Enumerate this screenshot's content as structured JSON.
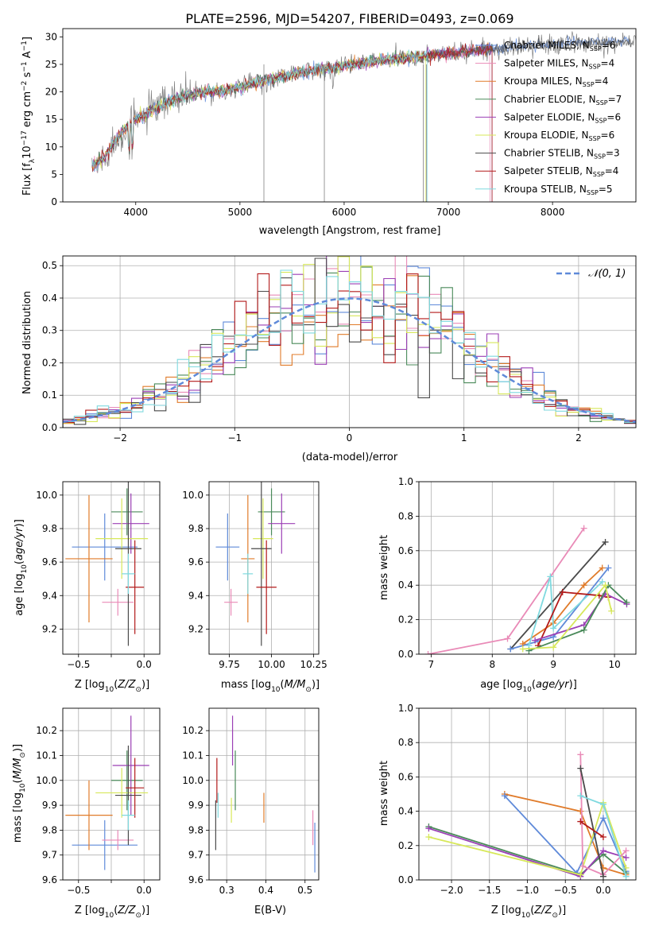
{
  "title": "PLATE=2596, MJD=54207, FIBERID=0493, z=0.069",
  "colors": {
    "chabrier_miles": "#5f8ad9",
    "salpeter_miles": "#e98ab7",
    "kroupa_miles": "#e07b2a",
    "chabrier_elodie": "#4a8a5a",
    "salpeter_elodie": "#9b3fb5",
    "kroupa_elodie": "#d7e85a",
    "chabrier_stelib": "#4a4a4a",
    "salpeter_stelib": "#b31a1a",
    "kroupa_stelib": "#7fd9df",
    "data": "#808080",
    "grid": "#b0b0b0"
  },
  "legend_labels": [
    "Chabrier MILES, N",
    "Salpeter MILES, N",
    "Kroupa MILES, N",
    "Chabrier ELODIE, N",
    "Salpeter ELODIE, N",
    "Kroupa ELODIE, N",
    "Chabrier STELIB, N",
    "Salpeter STELIB, N",
    "Kroupa STELIB, N"
  ],
  "legend_sub": "SSP",
  "legend_counts": [
    "=6",
    "=4",
    "=4",
    "=7",
    "=6",
    "=6",
    "=3",
    "=4",
    "=5"
  ],
  "chart_data": [
    {
      "type": "line",
      "id": "spectrum",
      "xlabel": "wavelength [Angstrom, rest frame]",
      "ylabel": "Flux [fλ10-17 erg cm-2 s-1 A-1]",
      "xlim": [
        3300,
        8800
      ],
      "ylim": [
        0,
        31.5
      ],
      "xticks": [
        4000,
        5000,
        6000,
        7000,
        8000
      ],
      "yticks": [
        0,
        5,
        10,
        15,
        20,
        25,
        30
      ],
      "grid": false,
      "continuum": {
        "x": [
          3580,
          3700,
          3800,
          3900,
          4000,
          4100,
          4200,
          4300,
          4400,
          4500,
          4600,
          4700,
          4800,
          4900,
          5000,
          5200,
          5400,
          5600,
          5800,
          6000,
          6200,
          6400,
          6600,
          6800,
          7000,
          7200,
          7400,
          7600,
          7800,
          8000,
          8200,
          8400,
          8600,
          8800
        ],
        "y": [
          6.5,
          8.0,
          11.0,
          13.5,
          15.0,
          16.0,
          17.0,
          18.0,
          18.8,
          19.4,
          19.8,
          20.0,
          20.2,
          20.5,
          20.8,
          21.8,
          22.8,
          23.6,
          24.2,
          24.8,
          25.3,
          25.8,
          26.2,
          26.6,
          27.0,
          27.4,
          27.8,
          28.1,
          28.4,
          28.6,
          28.8,
          29.0,
          29.1,
          29.2
        ]
      },
      "legend_position": "lower-right"
    },
    {
      "type": "histogram",
      "id": "residuals",
      "xlabel": "(data-model)/error",
      "ylabel": "Normed distribution",
      "xlim": [
        -2.5,
        2.5
      ],
      "ylim": [
        0,
        0.53
      ],
      "xticks": [
        -2,
        -1,
        0,
        1,
        2
      ],
      "yticks": [
        0.0,
        0.1,
        0.2,
        0.3,
        0.4,
        0.5
      ],
      "grid": true,
      "bins": 50,
      "reference_label": "𝒩(0, 1)",
      "legend_position": "upper-right"
    },
    {
      "type": "scatter",
      "id": "age_vs_Z",
      "xlabel": "Z [log10(Z/Z⊙)]",
      "ylabel": "age  [log10(age/yr)]",
      "xlim": [
        -0.62,
        0.12
      ],
      "ylim": [
        9.05,
        10.08
      ],
      "xticks": [
        -0.5,
        -0.25,
        0.0
      ],
      "yticks": [
        9.2,
        9.4,
        9.6,
        9.8,
        10.0
      ],
      "grid": true,
      "points": [
        {
          "model": "chabrier_miles",
          "x": -0.3,
          "xerr": 0.25,
          "y": 9.69,
          "yerr": 0.2
        },
        {
          "model": "salpeter_miles",
          "x": -0.2,
          "xerr": 0.12,
          "y": 9.36,
          "yerr": 0.08
        },
        {
          "model": "kroupa_miles",
          "x": -0.42,
          "xerr": 0.18,
          "y": 9.62,
          "yerr": 0.38
        },
        {
          "model": "chabrier_elodie",
          "x": -0.13,
          "xerr": 0.12,
          "y": 9.9,
          "yerr": 0.14
        },
        {
          "model": "salpeter_elodie",
          "x": -0.1,
          "xerr": 0.14,
          "y": 9.83,
          "yerr": 0.18
        },
        {
          "model": "kroupa_elodie",
          "x": -0.17,
          "xerr": 0.2,
          "y": 9.74,
          "yerr": 0.24
        },
        {
          "model": "chabrier_stelib",
          "x": -0.12,
          "xerr": 0.1,
          "y": 9.68,
          "yerr": 0.58
        },
        {
          "model": "salpeter_stelib",
          "x": -0.07,
          "xerr": 0.07,
          "y": 9.45,
          "yerr": 0.28
        },
        {
          "model": "kroupa_stelib",
          "x": -0.12,
          "xerr": 0.05,
          "y": 9.53,
          "yerr": 0.12
        }
      ]
    },
    {
      "type": "scatter",
      "id": "age_vs_mass",
      "xlabel": "mass [log10(M/M⊙)]",
      "ylabel": "",
      "xlim": [
        9.63,
        10.28
      ],
      "ylim": [
        9.05,
        10.08
      ],
      "xticks": [
        9.75,
        10.0,
        10.25
      ],
      "yticks": [
        9.2,
        9.4,
        9.6,
        9.8,
        10.0
      ],
      "grid": true,
      "points": [
        {
          "model": "chabrier_miles",
          "x": 9.74,
          "xerr": 0.07,
          "y": 9.69,
          "yerr": 0.2
        },
        {
          "model": "salpeter_miles",
          "x": 9.76,
          "xerr": 0.04,
          "y": 9.36,
          "yerr": 0.08
        },
        {
          "model": "kroupa_miles",
          "x": 9.86,
          "xerr": 0.04,
          "y": 9.62,
          "yerr": 0.38
        },
        {
          "model": "chabrier_elodie",
          "x": 10.0,
          "xerr": 0.08,
          "y": 9.9,
          "yerr": 0.14
        },
        {
          "model": "salpeter_elodie",
          "x": 10.06,
          "xerr": 0.08,
          "y": 9.83,
          "yerr": 0.18
        },
        {
          "model": "kroupa_elodie",
          "x": 9.95,
          "xerr": 0.06,
          "y": 9.74,
          "yerr": 0.24
        },
        {
          "model": "chabrier_stelib",
          "x": 9.94,
          "xerr": 0.06,
          "y": 9.68,
          "yerr": 0.58
        },
        {
          "model": "salpeter_stelib",
          "x": 9.97,
          "xerr": 0.06,
          "y": 9.45,
          "yerr": 0.28
        },
        {
          "model": "kroupa_stelib",
          "x": 9.86,
          "xerr": 0.03,
          "y": 9.53,
          "yerr": 0.12
        }
      ]
    },
    {
      "type": "line",
      "id": "weight_vs_age",
      "xlabel": "age  [log10(age/yr)]",
      "ylabel": "mass weight",
      "xlim": [
        6.8,
        10.35
      ],
      "ylim": [
        0,
        1.0
      ],
      "xticks": [
        7,
        8,
        9,
        10
      ],
      "yticks": [
        0.0,
        0.2,
        0.4,
        0.6,
        0.8,
        1.0
      ],
      "grid": true,
      "series": [
        {
          "model": "salpeter_miles",
          "x": [
            6.95,
            8.25,
            9.5
          ],
          "y": [
            0.0,
            0.09,
            0.73
          ]
        },
        {
          "model": "chabrier_stelib",
          "x": [
            8.3,
            9.85
          ],
          "y": [
            0.03,
            0.65
          ]
        },
        {
          "model": "chabrier_miles",
          "x": [
            8.3,
            9.0,
            9.9
          ],
          "y": [
            0.03,
            0.1,
            0.5
          ]
        },
        {
          "model": "kroupa_miles",
          "x": [
            8.5,
            9.0,
            9.5,
            9.8
          ],
          "y": [
            0.06,
            0.18,
            0.4,
            0.5
          ]
        },
        {
          "model": "kroupa_stelib",
          "x": [
            8.6,
            8.95,
            9.0,
            9.8
          ],
          "y": [
            0.05,
            0.45,
            0.15,
            0.42
          ]
        },
        {
          "model": "salpeter_stelib",
          "x": [
            8.75,
            9.15,
            9.75,
            9.9
          ],
          "y": [
            0.05,
            0.36,
            0.34,
            0.33
          ]
        },
        {
          "model": "salpeter_elodie",
          "x": [
            8.7,
            9.5,
            9.85,
            10.2
          ],
          "y": [
            0.08,
            0.17,
            0.35,
            0.29
          ]
        },
        {
          "model": "chabrier_elodie",
          "x": [
            8.6,
            9.5,
            9.9,
            10.2
          ],
          "y": [
            0.02,
            0.14,
            0.4,
            0.3
          ]
        },
        {
          "model": "kroupa_elodie",
          "x": [
            8.5,
            9.0,
            9.85,
            9.95
          ],
          "y": [
            0.03,
            0.04,
            0.4,
            0.25
          ]
        }
      ]
    },
    {
      "type": "scatter",
      "id": "mass_vs_Z",
      "xlabel": "Z [log10(Z/Z⊙)]",
      "ylabel": "mass [log10(M/M⊙)]",
      "xlim": [
        -0.62,
        0.12
      ],
      "ylim": [
        9.6,
        10.29
      ],
      "xticks": [
        -0.5,
        -0.25,
        0.0
      ],
      "yticks": [
        9.6,
        9.7,
        9.8,
        9.9,
        10.0,
        10.1,
        10.2
      ],
      "grid": true,
      "points": [
        {
          "model": "chabrier_miles",
          "x": -0.3,
          "xerr": 0.25,
          "y": 9.74,
          "yerr": 0.1
        },
        {
          "model": "salpeter_miles",
          "x": -0.2,
          "xerr": 0.12,
          "y": 9.76,
          "yerr": 0.04
        },
        {
          "model": "kroupa_miles",
          "x": -0.42,
          "xerr": 0.18,
          "y": 9.86,
          "yerr": 0.14
        },
        {
          "model": "chabrier_elodie",
          "x": -0.13,
          "xerr": 0.12,
          "y": 10.0,
          "yerr": 0.12
        },
        {
          "model": "salpeter_elodie",
          "x": -0.1,
          "xerr": 0.14,
          "y": 10.06,
          "yerr": 0.2
        },
        {
          "model": "kroupa_elodie",
          "x": -0.17,
          "xerr": 0.2,
          "y": 9.95,
          "yerr": 0.1
        },
        {
          "model": "chabrier_stelib",
          "x": -0.12,
          "xerr": 0.1,
          "y": 9.94,
          "yerr": 0.2
        },
        {
          "model": "salpeter_stelib",
          "x": -0.07,
          "xerr": 0.07,
          "y": 9.97,
          "yerr": 0.12
        },
        {
          "model": "kroupa_stelib",
          "x": -0.12,
          "xerr": 0.05,
          "y": 9.86,
          "yerr": 0.06
        }
      ]
    },
    {
      "type": "scatter",
      "id": "mass_vs_ebv",
      "xlabel": "E(B-V)",
      "ylabel": "",
      "xlim": [
        0.255,
        0.535
      ],
      "ylim": [
        9.6,
        10.29
      ],
      "xticks": [
        0.3,
        0.4,
        0.5
      ],
      "yticks": [
        9.6,
        9.7,
        9.8,
        9.9,
        10.0,
        10.1,
        10.2
      ],
      "grid": true,
      "points": [
        {
          "model": "chabrier_miles",
          "x": 0.525,
          "y": 9.73,
          "yerr": 0.1
        },
        {
          "model": "salpeter_miles",
          "x": 0.52,
          "y": 9.81,
          "yerr": 0.07
        },
        {
          "model": "kroupa_miles",
          "x": 0.395,
          "y": 9.89,
          "yerr": 0.06
        },
        {
          "model": "chabrier_elodie",
          "x": 0.322,
          "y": 10.0,
          "yerr": 0.12
        },
        {
          "model": "salpeter_elodie",
          "x": 0.315,
          "y": 10.16,
          "yerr": 0.1
        },
        {
          "model": "kroupa_elodie",
          "x": 0.312,
          "y": 9.88,
          "yerr": 0.05
        },
        {
          "model": "chabrier_stelib",
          "x": 0.272,
          "y": 9.82,
          "yerr": 0.1
        },
        {
          "model": "salpeter_stelib",
          "x": 0.275,
          "y": 10.0,
          "yerr": 0.09
        },
        {
          "model": "kroupa_stelib",
          "x": 0.278,
          "y": 9.9,
          "yerr": 0.05
        }
      ]
    },
    {
      "type": "line",
      "id": "weight_vs_Z",
      "xlabel": "Z [log10(Z/Z⊙)]",
      "ylabel": "mass weight",
      "xlim": [
        -2.43,
        0.43
      ],
      "ylim": [
        0,
        1.0
      ],
      "xticks": [
        -2.0,
        -1.5,
        -1.0,
        -0.5,
        0.0
      ],
      "yticks": [
        0.0,
        0.2,
        0.4,
        0.6,
        0.8,
        1.0
      ],
      "grid": true,
      "series": [
        {
          "model": "kroupa_miles",
          "x": [
            -1.3,
            -0.3,
            0.0,
            0.3
          ],
          "y": [
            0.5,
            0.4,
            0.07,
            0.03
          ]
        },
        {
          "model": "chabrier_miles",
          "x": [
            -1.3,
            -0.35,
            0.0,
            0.3
          ],
          "y": [
            0.49,
            0.04,
            0.36,
            0.05
          ]
        },
        {
          "model": "chabrier_elodie",
          "x": [
            -2.3,
            -0.3,
            0.0,
            0.3
          ],
          "y": [
            0.31,
            0.03,
            0.15,
            0.04
          ]
        },
        {
          "model": "salpeter_elodie",
          "x": [
            -2.3,
            -0.3,
            0.0,
            0.3
          ],
          "y": [
            0.3,
            0.02,
            0.17,
            0.13
          ]
        },
        {
          "model": "kroupa_elodie",
          "x": [
            -2.3,
            -0.3,
            0.0,
            0.3
          ],
          "y": [
            0.25,
            0.03,
            0.45,
            0.07
          ]
        },
        {
          "model": "salpeter_miles",
          "x": [
            -0.3,
            -0.27,
            0.0,
            0.3
          ],
          "y": [
            0.73,
            0.08,
            0.03,
            0.17
          ]
        },
        {
          "model": "chabrier_stelib",
          "x": [
            -0.3,
            0.0
          ],
          "y": [
            0.65,
            0.02
          ]
        },
        {
          "model": "salpeter_stelib",
          "x": [
            -0.3,
            0.0
          ],
          "y": [
            0.34,
            0.25
          ]
        },
        {
          "model": "kroupa_stelib",
          "x": [
            -0.3,
            0.0,
            0.3
          ],
          "y": [
            0.49,
            0.44,
            0.02
          ]
        }
      ]
    }
  ]
}
